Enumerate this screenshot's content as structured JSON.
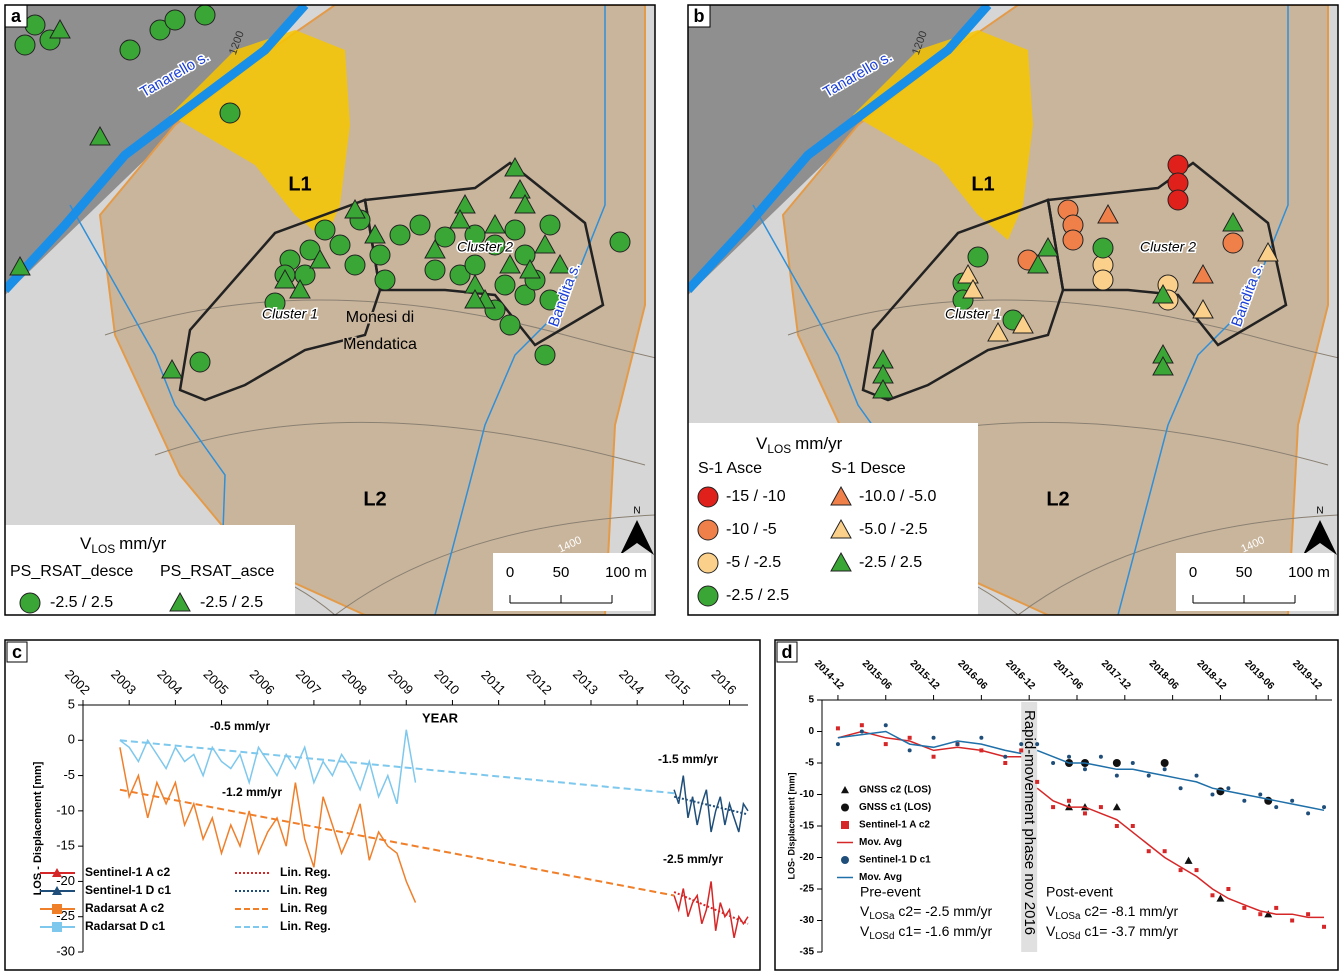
{
  "maps": [
    {
      "panel": "a",
      "river": "Tanarello s.",
      "contour_labels": [
        "1200",
        "1400"
      ],
      "landslides": [
        "L1",
        "L2"
      ],
      "clusters": [
        "Cluster 1",
        "Cluster 2"
      ],
      "town": [
        "Monesi di",
        "Mendatica"
      ],
      "stream": "Bandita s.",
      "north": "N",
      "scale": [
        "0",
        "50",
        "100 m"
      ],
      "legend": {
        "title": {
          "v": "V",
          "sub": "LOS",
          "unit": "mm/yr"
        },
        "groups": [
          {
            "name": "PS_RSAT_desce",
            "shape": "circle",
            "items": [
              {
                "label": "-2.5 / 2.5",
                "color": "#3aa635"
              }
            ]
          },
          {
            "name": "PS_RSAT_asce",
            "shape": "triangle",
            "items": [
              {
                "label": "-2.5 / 2.5",
                "color": "#3aa635"
              }
            ]
          }
        ]
      }
    },
    {
      "panel": "b",
      "river": "Tanarello s.",
      "contour_labels": [
        "1200",
        "1400"
      ],
      "landslides": [
        "L1",
        "L2"
      ],
      "clusters": [
        "Cluster 1",
        "Cluster 2"
      ],
      "stream": "Bandita s.",
      "north": "N",
      "scale": [
        "0",
        "50",
        "100 m"
      ],
      "legend": {
        "title": {
          "v": "V",
          "sub": "LOS",
          "unit": "mm/yr"
        },
        "groups": [
          {
            "name": "S-1 Asce",
            "shape": "circle",
            "items": [
              {
                "label": "-15 / -10",
                "color": "#e0201b"
              },
              {
                "label": "-10 / -5",
                "color": "#f0804a"
              },
              {
                "label": "-5 / -2.5",
                "color": "#fbd08a"
              },
              {
                "label": "-2.5 / 2.5",
                "color": "#3aa635"
              }
            ]
          },
          {
            "name": "S-1 Desce",
            "shape": "triangle",
            "items": [
              {
                "label": "-10.0 / -5.0",
                "color": "#f0804a"
              },
              {
                "label": "-5.0 / -2.5",
                "color": "#fbd08a"
              },
              {
                "label": "-2.5 / 2.5",
                "color": "#3aa635"
              }
            ]
          }
        ]
      }
    }
  ],
  "chart_data": [
    {
      "type": "line",
      "panel": "c",
      "x_label": "YEAR",
      "y_label": "LOS - Displacement [mm]",
      "xlim": [
        2002,
        2016.4
      ],
      "xticks": [
        2002,
        2003,
        2004,
        2005,
        2006,
        2007,
        2008,
        2009,
        2010,
        2011,
        2012,
        2013,
        2014,
        2015,
        2016
      ],
      "ylim": [
        -30,
        5
      ],
      "yticks": [
        5,
        0,
        -5,
        -10,
        -15,
        -20,
        -25,
        -30
      ],
      "annotations": [
        "-0.5 mm/yr",
        "-1.2 mm/yr",
        "-1.5 mm/yr",
        "-2.5 mm/yr"
      ],
      "series": [
        {
          "name": "Sentinel-1 A c2",
          "color": "#d62728",
          "marker": "triangle",
          "style": "solid",
          "x": [
            2014.8,
            2014.9,
            2015.0,
            2015.1,
            2015.2,
            2015.3,
            2015.4,
            2015.5,
            2015.6,
            2015.7,
            2015.8,
            2015.9,
            2016.0,
            2016.1,
            2016.2,
            2016.3,
            2016.4
          ],
          "values": [
            -22,
            -24,
            -21,
            -25,
            -23,
            -22,
            -26,
            -24,
            -20,
            -27,
            -23,
            -25,
            -24,
            -28,
            -25,
            -26,
            -25
          ]
        },
        {
          "name": "Sentinel-1 D c1",
          "color": "#1e4e79",
          "marker": "triangle",
          "style": "solid",
          "x": [
            2014.8,
            2014.9,
            2015.0,
            2015.1,
            2015.2,
            2015.3,
            2015.4,
            2015.5,
            2015.6,
            2015.7,
            2015.8,
            2015.9,
            2016.0,
            2016.1,
            2016.2,
            2016.3,
            2016.4
          ],
          "values": [
            -7,
            -9,
            -5,
            -11,
            -8,
            -12,
            -9,
            -7,
            -13,
            -10,
            -8,
            -12,
            -9,
            -11,
            -13,
            -9,
            -10
          ]
        },
        {
          "name": "Radarsat A c2",
          "color": "#f07f2a",
          "marker": "square",
          "style": "solid",
          "x": [
            2002.8,
            2003.0,
            2003.2,
            2003.4,
            2003.6,
            2003.8,
            2004.0,
            2004.2,
            2004.4,
            2004.6,
            2004.8,
            2005.0,
            2005.2,
            2005.4,
            2005.6,
            2005.8,
            2006.0,
            2006.2,
            2006.4,
            2006.6,
            2006.8,
            2007.0,
            2007.2,
            2007.4,
            2007.6,
            2007.8,
            2008.0,
            2008.2,
            2008.4,
            2008.6,
            2008.8,
            2009.0,
            2009.2
          ],
          "values": [
            -1,
            -8,
            -5,
            -11,
            -6,
            -9,
            -6,
            -12,
            -9,
            -14,
            -11,
            -16,
            -12,
            -15,
            -10,
            -16,
            -13,
            -11,
            -15,
            -6,
            -14,
            -18,
            -8,
            -12,
            -16,
            -13,
            -9,
            -17,
            -13,
            -15,
            -16,
            -20,
            -23
          ]
        },
        {
          "name": "Radarsat D c1",
          "color": "#7ec8ed",
          "marker": "square",
          "style": "solid",
          "x": [
            2002.8,
            2003.0,
            2003.2,
            2003.4,
            2003.6,
            2003.8,
            2004.0,
            2004.2,
            2004.4,
            2004.6,
            2004.8,
            2005.0,
            2005.2,
            2005.4,
            2005.6,
            2005.8,
            2006.0,
            2006.2,
            2006.4,
            2006.6,
            2006.8,
            2007.0,
            2007.2,
            2007.4,
            2007.6,
            2007.8,
            2008.0,
            2008.2,
            2008.4,
            2008.6,
            2008.8,
            2009.0,
            2009.2
          ],
          "values": [
            0,
            -1,
            -3,
            0,
            -2,
            -4,
            -1,
            -3,
            -2,
            -5,
            -1,
            -3,
            -4,
            -2,
            -6,
            -1,
            -3,
            -5,
            -2,
            -4,
            -1,
            -6,
            -3,
            -5,
            -2,
            -4,
            -7,
            -3,
            -8,
            -5,
            -9,
            1.5,
            -6
          ]
        },
        {
          "name": "Lin. Reg.",
          "color": "#d62728",
          "style": "dotted",
          "x": [
            2014.8,
            2016.4
          ],
          "values": [
            -21.5,
            -26
          ]
        },
        {
          "name": "Lin. Reg",
          "color": "#1e4e79",
          "style": "dotted",
          "x": [
            2014.8,
            2016.4
          ],
          "values": [
            -8,
            -10.5
          ]
        },
        {
          "name": "Lin. Reg",
          "color": "#f07f2a",
          "style": "dashed",
          "x": [
            2002.8,
            2014.8
          ],
          "values": [
            -7,
            -22
          ]
        },
        {
          "name": "Lin. Reg.",
          "color": "#7ec8ed",
          "style": "dashed",
          "x": [
            2002.8,
            2014.8
          ],
          "values": [
            0,
            -7.5
          ]
        }
      ]
    },
    {
      "type": "line",
      "panel": "d",
      "y_label": "LOS- Displacement [mm]",
      "xlim": [
        "2014-10",
        "2020-02"
      ],
      "xticks": [
        "2014-12",
        "2015-06",
        "2015-12",
        "2016-06",
        "2016-12",
        "2017-06",
        "2017-12",
        "2018-06",
        "2018-12",
        "2019-06",
        "2019-12"
      ],
      "ylim": [
        -35,
        5
      ],
      "yticks": [
        5,
        0,
        -5,
        -10,
        -15,
        -20,
        -25,
        -30,
        -35
      ],
      "event_band": {
        "from": "2016-11",
        "to": "2017-01",
        "label": "Rapid-movement phase nov 2016"
      },
      "x": [
        "2014-12",
        "2015-03",
        "2015-06",
        "2015-09",
        "2015-12",
        "2016-03",
        "2016-06",
        "2016-09",
        "2016-11",
        "2016-12",
        "2017-01",
        "2017-03",
        "2017-05",
        "2017-07",
        "2017-09",
        "2017-11",
        "2018-01",
        "2018-03",
        "2018-05",
        "2018-07",
        "2018-09",
        "2018-11",
        "2019-01",
        "2019-03",
        "2019-05",
        "2019-07",
        "2019-09",
        "2019-11",
        "2020-01"
      ],
      "series": [
        {
          "name": "GNSS c2 (LOS)",
          "color": "#111111",
          "marker": "triangle",
          "style": "none",
          "x": [
            "2017-05",
            "2017-07",
            "2017-11",
            "2018-08",
            "2018-12",
            "2019-06"
          ],
          "values": [
            -12,
            -12,
            -12,
            -20.5,
            -26.5,
            -29
          ]
        },
        {
          "name": "GNSS c1 (LOS)",
          "color": "#111111",
          "marker": "circle",
          "style": "none",
          "x": [
            "2017-05",
            "2017-07",
            "2017-11",
            "2018-05",
            "2018-12",
            "2019-06"
          ],
          "values": [
            -5,
            -5,
            -5,
            -5,
            -9.5,
            -11
          ]
        },
        {
          "name": "Sentinel-1 A c2",
          "color": "#d62728",
          "marker": "square",
          "style": "none",
          "values": [
            0.5,
            1,
            -2,
            -1,
            -4,
            -2,
            -3,
            -5,
            -3,
            null,
            -8,
            -12,
            -11,
            -13,
            -12,
            -15,
            -15,
            -19,
            -19,
            -22,
            -22,
            -26,
            -25,
            -28,
            -29,
            -28,
            -30,
            -29,
            -31
          ]
        },
        {
          "name": "Mov. Avg",
          "color": "#d62728",
          "style": "solid",
          "values": [
            -1,
            0,
            -1,
            -1.5,
            -3,
            -2.5,
            -3,
            -4,
            -4,
            null,
            -9,
            -11,
            -12,
            -12,
            -13,
            -14,
            -16,
            -18,
            -20,
            -21.5,
            -23,
            -25,
            -26.5,
            -27.5,
            -28.5,
            -29,
            -29,
            -29.5,
            -29.5
          ]
        },
        {
          "name": "Sentinel-1 D c1",
          "color": "#1e4e79",
          "marker": "circle",
          "style": "none",
          "values": [
            -2,
            0,
            1,
            -3,
            -1,
            -2,
            -1,
            -4,
            -2,
            null,
            -2,
            -5,
            -4,
            -6,
            -4,
            -7,
            -5,
            -7,
            -6,
            -9,
            -7,
            -10,
            -9,
            -11,
            -10,
            -12,
            -11,
            -13,
            -12
          ]
        },
        {
          "name": "Mov. Avg",
          "color": "#1f6fa8",
          "style": "solid",
          "values": [
            -1,
            -0.5,
            0,
            -2,
            -2.5,
            -1.5,
            -2,
            -3,
            -3.5,
            null,
            -3,
            -4,
            -5,
            -5,
            -5.5,
            -6,
            -6,
            -6.5,
            -7,
            -7.5,
            -8,
            -9,
            -9.5,
            -10,
            -10.5,
            -11,
            -11.5,
            -12,
            -12.5
          ]
        }
      ],
      "pre_event": {
        "title": "Pre-event",
        "lines": [
          {
            "v": "V",
            "sub": "LOSa",
            "rest": "c2= -2.5 mm/yr"
          },
          {
            "v": "V",
            "sub": "LOSd",
            "rest": "c1= -1.6 mm/yr"
          }
        ]
      },
      "post_event": {
        "title": "Post-event",
        "lines": [
          {
            "v": "V",
            "sub": "LOSa",
            "rest": "c2= -8.1 mm/yr"
          },
          {
            "v": "V",
            "sub": "LOSd",
            "rest": "c1= -3.7 mm/yr"
          }
        ]
      }
    }
  ]
}
